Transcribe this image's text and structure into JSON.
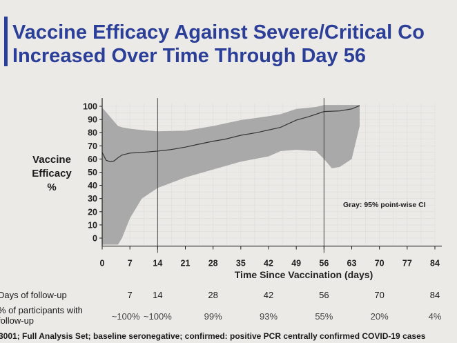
{
  "title_lines": [
    "Vaccine Efficacy Against Severe/Critical Co",
    "Increased Over Time Through Day 56"
  ],
  "chart_data": {
    "type": "line",
    "ylabel": "Vaccine Efficacy %",
    "ylabel_lines": [
      "Vaccine",
      "Efficacy",
      "%"
    ],
    "xlabel": "Time Since Vaccination (days)",
    "xticks": [
      0,
      7,
      14,
      21,
      28,
      35,
      42,
      49,
      56,
      63,
      70,
      77,
      84
    ],
    "yticks": [
      0,
      10,
      20,
      30,
      40,
      50,
      60,
      70,
      80,
      90,
      100
    ],
    "xlim": [
      0,
      84
    ],
    "ylim": [
      -5,
      102
    ],
    "grid": true,
    "reference_lines_x": [
      14,
      56
    ],
    "annotation": "Gray: 95% point-wise CI",
    "band_color": "#a9a9aa",
    "line_color": "#333333",
    "series": {
      "x": [
        0,
        1,
        2,
        3,
        4,
        5,
        7,
        10,
        14,
        17,
        21,
        24,
        28,
        31,
        35,
        39,
        42,
        45,
        49,
        52,
        56,
        60,
        63,
        65
      ],
      "efficacy": [
        65,
        59,
        58,
        58.5,
        61,
        63,
        64.5,
        65,
        66,
        67,
        69,
        71,
        73.5,
        75,
        78,
        80,
        82,
        84,
        89.5,
        92,
        96,
        96.5,
        98,
        100.5
      ]
    },
    "ci": {
      "x": [
        0,
        2,
        4,
        5,
        7,
        10,
        14,
        21,
        28,
        35,
        42,
        45,
        49,
        54,
        56,
        58,
        60,
        63,
        65
      ],
      "upper": [
        99,
        92,
        85,
        84,
        83,
        82,
        81,
        81.5,
        85,
        89.5,
        92.5,
        94,
        98,
        99.5,
        101,
        101,
        101,
        101,
        101
      ],
      "lower": [
        -5,
        -5,
        -5,
        0,
        15,
        30,
        38,
        46,
        52,
        58,
        62,
        66,
        67,
        66,
        60,
        53,
        54,
        60,
        85
      ]
    }
  },
  "table": {
    "row_labels": [
      "Days of follow-up",
      "% of participants with",
      "follow-up"
    ],
    "days": [
      "7",
      "14",
      "28",
      "42",
      "56",
      "70",
      "84"
    ],
    "day_values": [
      7,
      14,
      28,
      42,
      56,
      70,
      84
    ],
    "percent": [
      "~100%",
      "~100%",
      "99%",
      "93%",
      "55%",
      "20%",
      "4%"
    ]
  },
  "footnote": "3001; Full Analysis Set; baseline seronegative; confirmed: positive PCR centrally confirmed COVID-19 cases"
}
